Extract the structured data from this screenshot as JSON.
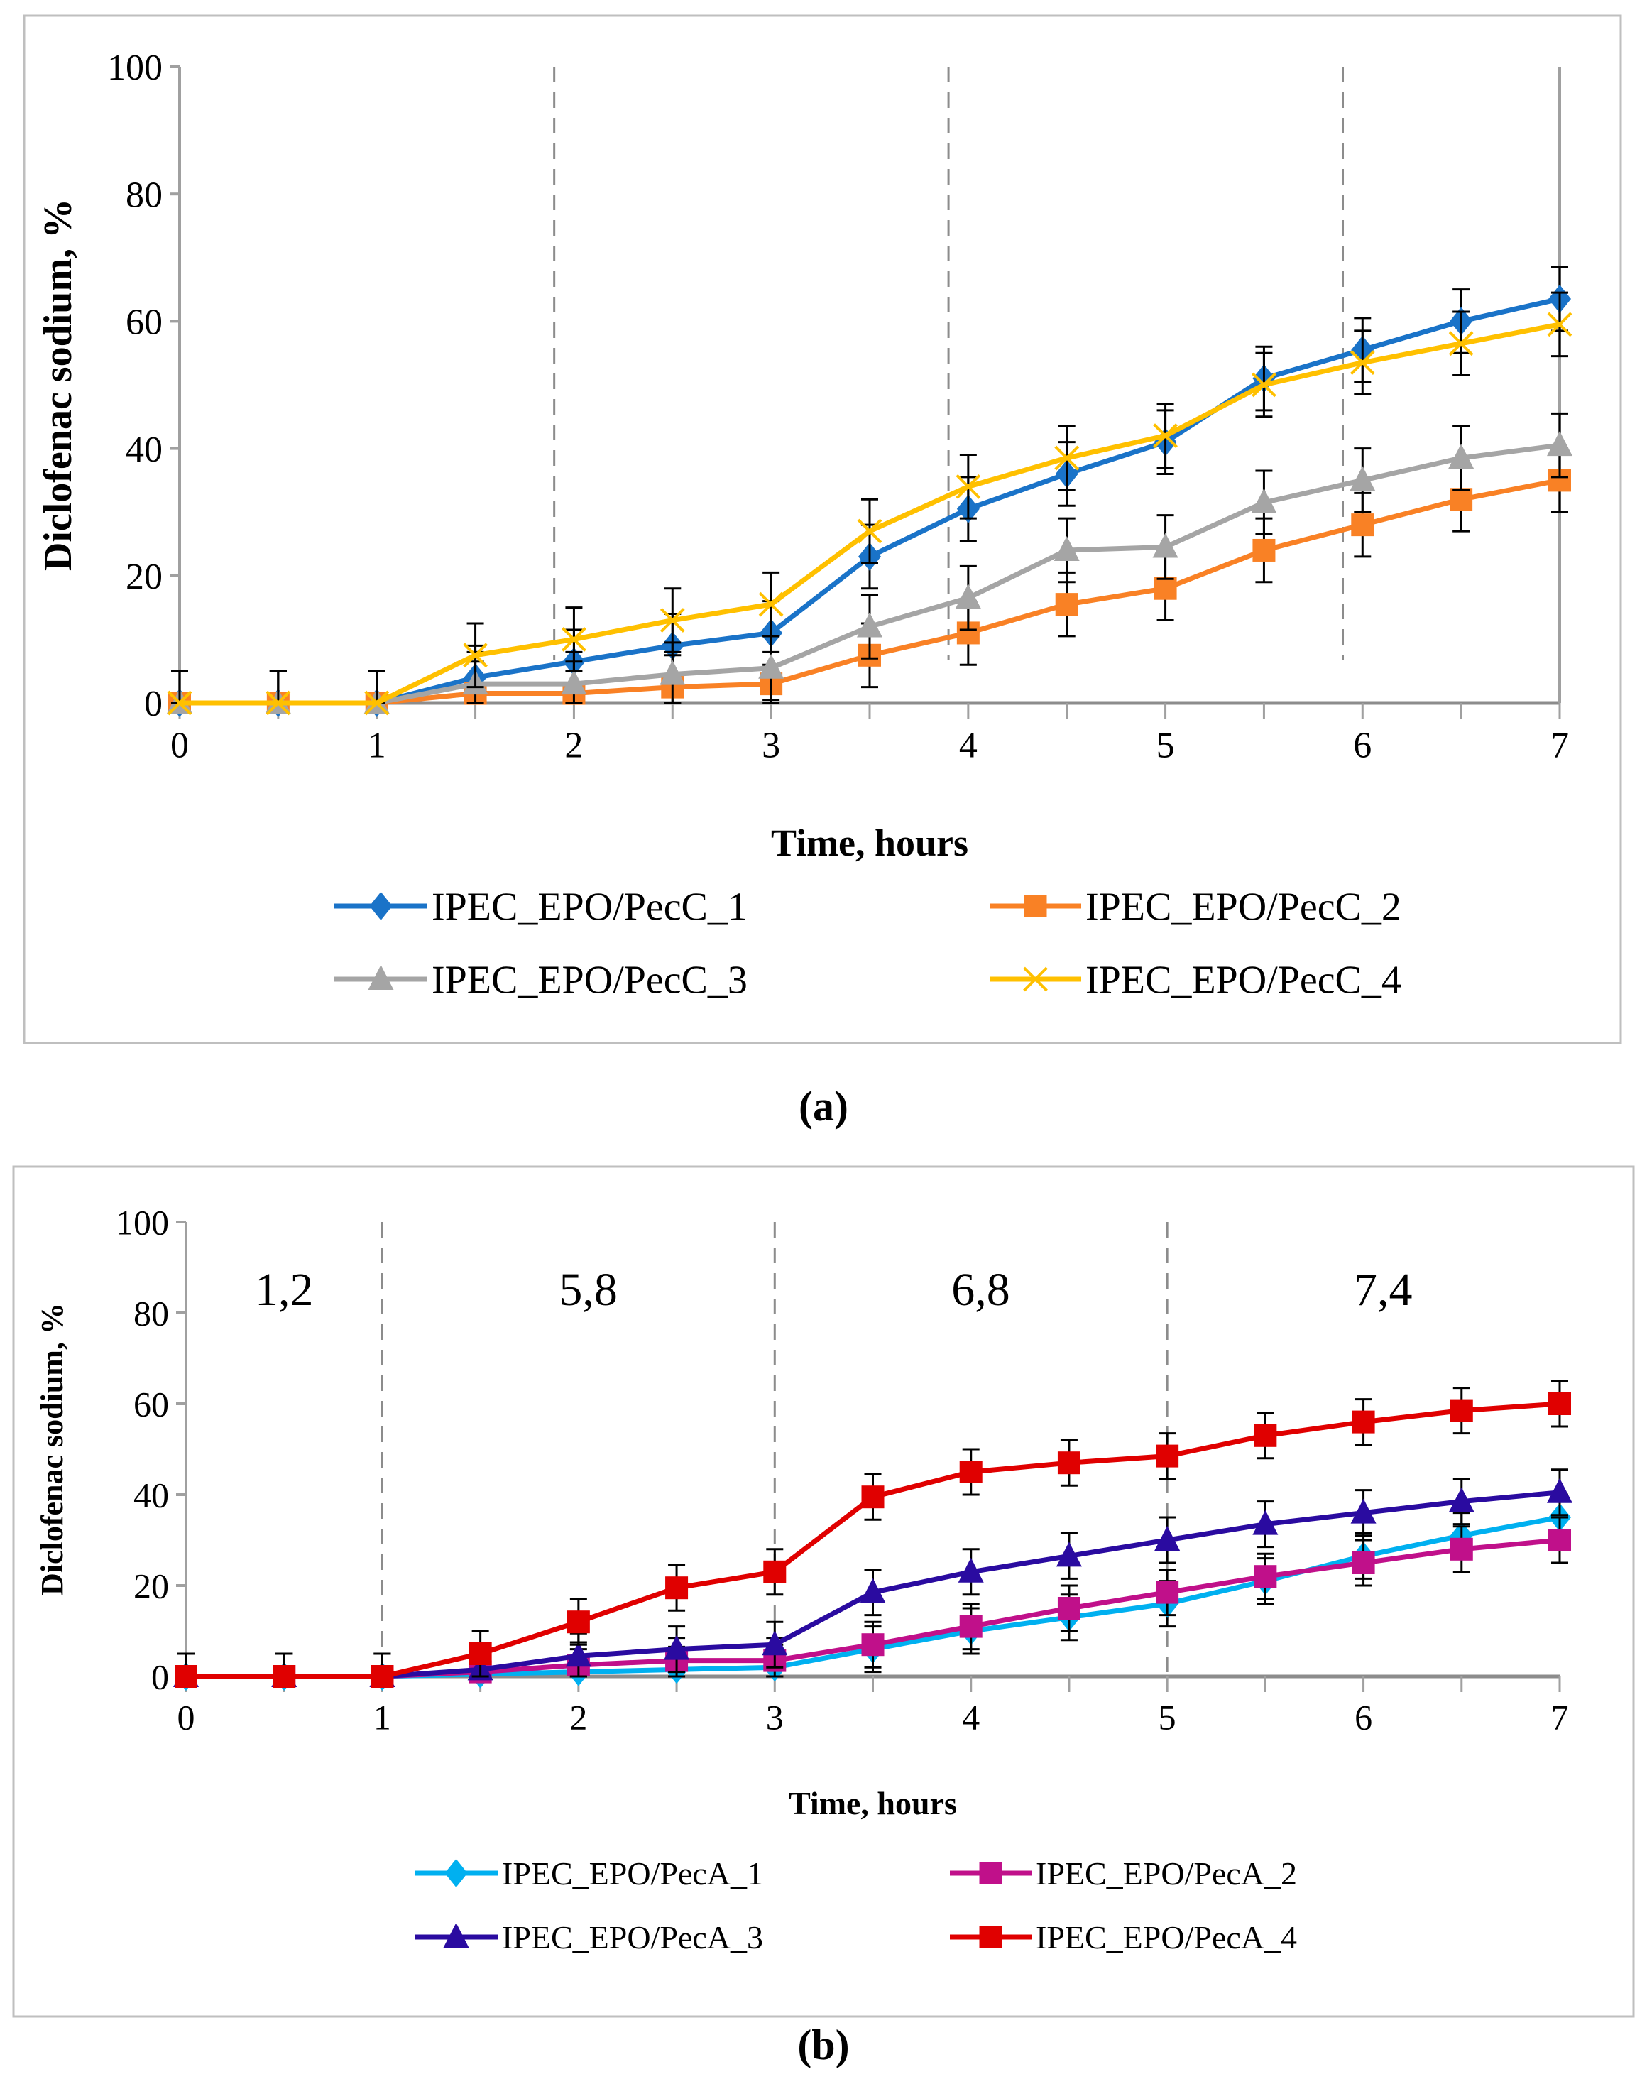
{
  "chart_data": [
    {
      "type": "line",
      "panel_label": "(a)",
      "xlabel": "Time, hours",
      "ylabel": "Diclofenac sodium, %",
      "xlim": [
        0,
        7
      ],
      "ylim": [
        0,
        100
      ],
      "xticks": [
        0,
        1,
        2,
        3,
        4,
        5,
        6,
        7
      ],
      "yticks": [
        0,
        20,
        40,
        60,
        80,
        100
      ],
      "grid": false,
      "legend_position": "bottom",
      "vertical_dashed_lines": [
        1.9,
        3.9,
        5.9
      ],
      "annotations": [],
      "x": [
        0,
        0.5,
        1,
        1.5,
        2,
        2.5,
        3,
        3.5,
        4,
        4.5,
        5,
        5.5,
        6,
        6.5,
        7
      ],
      "error": 5,
      "series": [
        {
          "name": "IPEC_EPO/PecC_1",
          "color": "#1a73c8",
          "marker": "diamond",
          "values": [
            0,
            0,
            0,
            4,
            6.5,
            9,
            11,
            23,
            30.5,
            36,
            41,
            51,
            55.5,
            60,
            63.5
          ]
        },
        {
          "name": "IPEC_EPO/PecC_2",
          "color": "#f98125",
          "marker": "square",
          "values": [
            0,
            0,
            0,
            1.5,
            1.5,
            2.5,
            3,
            7.5,
            11,
            15.5,
            18,
            24,
            28,
            32,
            35
          ]
        },
        {
          "name": "IPEC_EPO/PecC_3",
          "color": "#a5a5a5",
          "marker": "triangle",
          "values": [
            0,
            0,
            0,
            3,
            3,
            4.5,
            5.5,
            12,
            16.5,
            24,
            24.5,
            31.5,
            35,
            38.5,
            40.5
          ]
        },
        {
          "name": "IPEC_EPO/PecC_4",
          "color": "#ffc000",
          "marker": "x",
          "values": [
            0,
            0,
            0,
            7.5,
            10,
            13,
            15.5,
            27,
            34,
            38.5,
            42,
            50,
            53.5,
            56.5,
            59.5
          ]
        }
      ]
    },
    {
      "type": "line",
      "panel_label": "(b)",
      "xlabel": "Time, hours",
      "ylabel": "Diclofenac sodium, %",
      "xlim": [
        0,
        7
      ],
      "ylim": [
        0,
        100
      ],
      "xticks": [
        0,
        1,
        2,
        3,
        4,
        5,
        6,
        7
      ],
      "yticks": [
        0,
        20,
        40,
        60,
        80,
        100
      ],
      "grid": false,
      "legend_position": "bottom",
      "vertical_dashed_lines": [
        1,
        3,
        5
      ],
      "annotations": [
        {
          "text": "1,2",
          "x": 0.5
        },
        {
          "text": "5,8",
          "x": 2.05
        },
        {
          "text": "6,8",
          "x": 4.05
        },
        {
          "text": "7,4",
          "x": 6.1
        }
      ],
      "x": [
        0,
        0.5,
        1,
        1.5,
        2,
        2.5,
        3,
        3.5,
        4,
        4.5,
        5,
        5.5,
        6,
        6.5,
        7
      ],
      "error": 5,
      "series": [
        {
          "name": "IPEC_EPO/PecA_1",
          "color": "#00b0f0",
          "marker": "diamond",
          "values": [
            0,
            0,
            0,
            0.5,
            1,
            1.5,
            2,
            6,
            10,
            13,
            16,
            21,
            26.5,
            31,
            35
          ]
        },
        {
          "name": "IPEC_EPO/PecA_2",
          "color": "#c0108a",
          "marker": "square",
          "values": [
            0,
            0,
            0,
            1,
            2.5,
            3.5,
            3.5,
            7,
            11,
            15,
            18.5,
            22,
            25,
            28,
            30
          ]
        },
        {
          "name": "IPEC_EPO/PecA_3",
          "color": "#2a0ba0",
          "marker": "triangle",
          "values": [
            0,
            0,
            0,
            1.5,
            4.5,
            6,
            7,
            18.5,
            23,
            26.5,
            30,
            33.5,
            36,
            38.5,
            40.5
          ]
        },
        {
          "name": "IPEC_EPO/PecA_4",
          "color": "#e00000",
          "marker": "square",
          "values": [
            0,
            0,
            0,
            5,
            12,
            19.5,
            23,
            39.5,
            45,
            47,
            48.5,
            53,
            56,
            58.5,
            60
          ]
        }
      ]
    }
  ]
}
